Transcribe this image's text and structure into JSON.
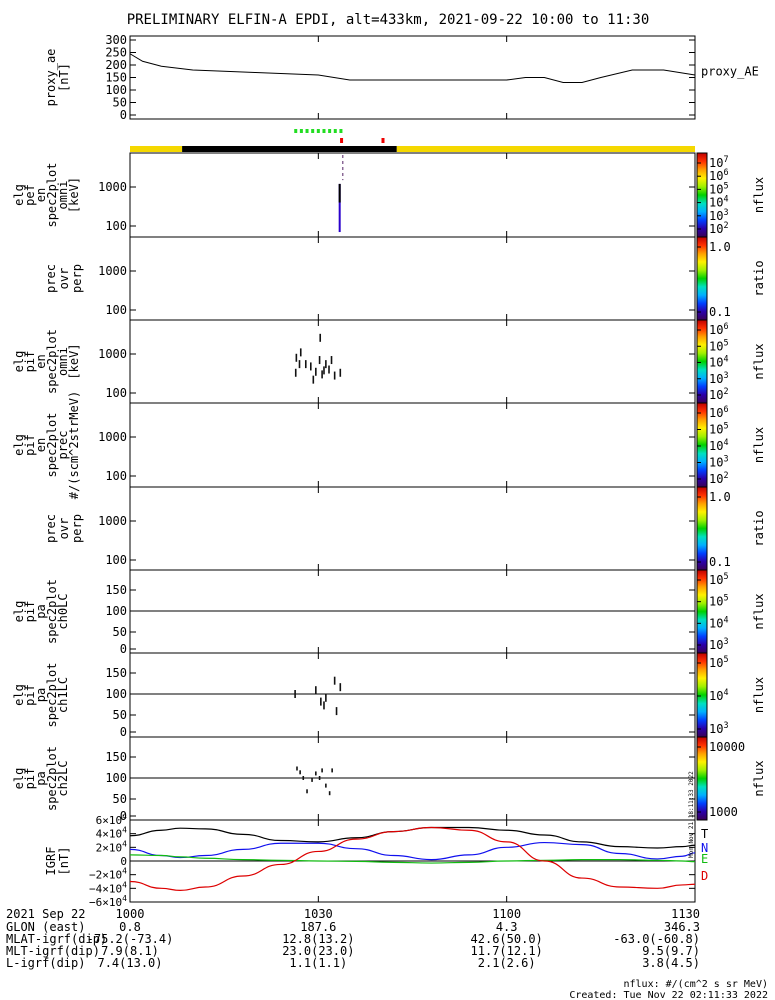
{
  "title": "PRELIMINARY ELFIN-A EPDI, alt=433km, 2021-09-22 10:00 to 11:30",
  "colors": {
    "black_bar": "#000000",
    "yellow_bar": "#f5d800",
    "green_marks": "#22dd22",
    "red_marks": "#ee0000",
    "igrf_T": "#000000",
    "igrf_N": "#1010ee",
    "igrf_E": "#11bb11",
    "igrf_D": "#dd0000"
  },
  "time_axis": {
    "tick_labels": [
      "1000",
      "1030",
      "1100",
      "1130"
    ],
    "tick_minutes": [
      0,
      30,
      60,
      90
    ],
    "range_minutes": [
      0,
      90
    ]
  },
  "orbit_bar": {
    "segments": [
      {
        "start_min": 0,
        "end_min": 8.3,
        "color": "yellow"
      },
      {
        "start_min": 8.3,
        "end_min": 42.5,
        "color": "black"
      },
      {
        "start_min": 42.5,
        "end_min": 90,
        "color": "yellow"
      }
    ],
    "green_marks_min": [
      26.4,
      27.3,
      28.2,
      29.1,
      30.0,
      30.9,
      31.8,
      32.7,
      33.6
    ],
    "red_marks_min": [
      33.7,
      40.3
    ]
  },
  "panels": [
    {
      "id": "proxy_ae",
      "ylabel": [
        "proxy_ae",
        "[nT]"
      ],
      "right_label": "proxy_AE",
      "yticks": [
        "300",
        "250",
        "200",
        "150",
        "100",
        "50",
        "0"
      ],
      "yrange": [
        0,
        300
      ]
    },
    {
      "id": "pef_en_omni",
      "ylabel": [
        "elg",
        "pef",
        "en",
        "spec2plot",
        "omni",
        "[keV]"
      ],
      "yticks": [
        "1000",
        "100"
      ],
      "colorbar": {
        "type": "nflux",
        "labels": [
          "10^7",
          "10^6",
          "10^5",
          "10^4",
          "10^3",
          "10^2"
        ],
        "title": "nflux"
      }
    },
    {
      "id": "prec_ovr_perp_e",
      "ylabel": [
        "prec",
        "ovr",
        "perp"
      ],
      "yticks": [
        "1000",
        "100"
      ],
      "colorbar": {
        "type": "ratio",
        "labels": [
          "1.0",
          "0.1"
        ],
        "title": "ratio"
      }
    },
    {
      "id": "pif_en_omni",
      "ylabel": [
        "elg",
        "pif",
        "en",
        "spec2plot",
        "omni",
        "[keV]"
      ],
      "yticks": [
        "1000",
        "100"
      ],
      "colorbar": {
        "type": "nflux",
        "labels": [
          "10^6",
          "10^5",
          "10^4",
          "10^3",
          "10^2"
        ],
        "title": "nflux"
      }
    },
    {
      "id": "pif_en_prec",
      "ylabel": [
        "elg",
        "pif",
        "en",
        "spec2plot",
        "prec",
        "#/(scm^2strMeV)"
      ],
      "yticks": [
        "1000",
        "100"
      ],
      "colorbar": {
        "type": "nflux",
        "labels": [
          "10^6",
          "10^5",
          "10^4",
          "10^3",
          "10^2"
        ],
        "title": "nflux"
      }
    },
    {
      "id": "prec_ovr_perp_i",
      "ylabel": [
        "prec",
        "ovr",
        "perp"
      ],
      "yticks": [
        "1000",
        "100"
      ],
      "colorbar": {
        "type": "ratio",
        "labels": [
          "1.0",
          "0.1"
        ],
        "title": "ratio"
      }
    },
    {
      "id": "pa_ch0LC",
      "ylabel": [
        "elg",
        "pif",
        "pa",
        "spec2plot",
        "ch0LC"
      ],
      "yticks": [
        "150",
        "100",
        "50",
        "0"
      ],
      "colorbar": {
        "type": "nflux",
        "labels": [
          "10^5",
          "10^5",
          "10^4",
          "10^3"
        ],
        "title": "nflux"
      }
    },
    {
      "id": "pa_ch1LC",
      "ylabel": [
        "elg",
        "pif",
        "pa",
        "spec2plot",
        "ch1LC"
      ],
      "yticks": [
        "150",
        "100",
        "50",
        "0"
      ],
      "colorbar": {
        "type": "nflux",
        "labels": [
          "10^5",
          "10^4",
          "10^3"
        ],
        "title": "nflux"
      }
    },
    {
      "id": "pa_ch2LC",
      "ylabel": [
        "elg",
        "pif",
        "pa",
        "spec2plot",
        "ch2LC"
      ],
      "yticks": [
        "150",
        "100",
        "50",
        "0"
      ],
      "colorbar": {
        "type": "nflux",
        "labels": [
          "10000",
          "1000"
        ],
        "title": "nflux"
      }
    },
    {
      "id": "igrf",
      "ylabel": [
        "IGRF",
        "[nT]"
      ],
      "yticks": [
        "6×10^4",
        "4×10^4",
        "2×10^4",
        "0",
        "−2×10^4",
        "−4×10^4",
        "−6×10^4"
      ],
      "yrange": [
        -60000,
        60000
      ],
      "legend": [
        "T",
        "N",
        "E",
        "D"
      ]
    }
  ],
  "chart_data": {
    "type": "line",
    "title": "PRELIMINARY ELFIN-A EPDI, alt=433km, 2021-09-22 10:00 to 11:30",
    "x_unit": "minutes after 2021-09-22 10:00",
    "proxy_ae": {
      "x": [
        0,
        2,
        5,
        10,
        15,
        20,
        25,
        30,
        35,
        40,
        45,
        50,
        55,
        60,
        63,
        66,
        69,
        72,
        75,
        80,
        85,
        90
      ],
      "y": [
        245,
        215,
        195,
        180,
        175,
        170,
        165,
        160,
        140,
        140,
        140,
        140,
        140,
        140,
        150,
        150,
        130,
        130,
        150,
        180,
        180,
        160
      ]
    },
    "pef_en_omni_spot": {
      "t_min": [
        33.4,
        33.9
      ],
      "energy_keV": [
        70,
        1200
      ]
    },
    "pif_en_omni_spots": [
      {
        "t": 26.5,
        "e": 800
      },
      {
        "t": 27.2,
        "e": 1100
      },
      {
        "t": 27.0,
        "e": 550
      },
      {
        "t": 28.0,
        "e": 550
      },
      {
        "t": 28.8,
        "e": 480
      },
      {
        "t": 29.6,
        "e": 350
      },
      {
        "t": 30.2,
        "e": 700
      },
      {
        "t": 30.3,
        "e": 2600
      },
      {
        "t": 30.9,
        "e": 380
      },
      {
        "t": 31.2,
        "e": 550
      },
      {
        "t": 31.7,
        "e": 400
      },
      {
        "t": 32.1,
        "e": 700
      },
      {
        "t": 32.6,
        "e": 280
      },
      {
        "t": 33.5,
        "e": 330
      },
      {
        "t": 26.4,
        "e": 330
      },
      {
        "t": 29.2,
        "e": 220
      },
      {
        "t": 30.6,
        "e": 300
      }
    ],
    "pa_ch1LC_spots": [
      {
        "t": 26.3,
        "pa": 100
      },
      {
        "t": 29.6,
        "pa": 110
      },
      {
        "t": 30.4,
        "pa": 80
      },
      {
        "t": 30.9,
        "pa": 70
      },
      {
        "t": 31.2,
        "pa": 90
      },
      {
        "t": 32.6,
        "pa": 135
      },
      {
        "t": 32.9,
        "pa": 55
      },
      {
        "t": 33.5,
        "pa": 118
      }
    ],
    "pa_ch2LC_spots": [
      {
        "t": 26.6,
        "pa": 125
      },
      {
        "t": 27.1,
        "pa": 115
      },
      {
        "t": 27.6,
        "pa": 100
      },
      {
        "t": 28.2,
        "pa": 65
      },
      {
        "t": 29.0,
        "pa": 95
      },
      {
        "t": 29.6,
        "pa": 112
      },
      {
        "t": 30.2,
        "pa": 100
      },
      {
        "t": 30.6,
        "pa": 120
      },
      {
        "t": 31.2,
        "pa": 80
      },
      {
        "t": 31.8,
        "pa": 60
      },
      {
        "t": 32.2,
        "pa": 120
      }
    ],
    "igrf": {
      "x": [
        0,
        5,
        8,
        12,
        18,
        24,
        30,
        36,
        42,
        48,
        54,
        60,
        66,
        72,
        78,
        84,
        88,
        90
      ],
      "series": [
        {
          "name": "T",
          "values": [
            37000,
            45000,
            48000,
            47000,
            39000,
            30000,
            28000,
            34000,
            43000,
            49000,
            49000,
            45000,
            38000,
            28000,
            21000,
            19000,
            21000,
            23000
          ]
        },
        {
          "name": "N",
          "values": [
            17000,
            8000,
            5000,
            8000,
            17000,
            26000,
            26000,
            18000,
            8000,
            2000,
            9000,
            20000,
            27000,
            24000,
            11000,
            3000,
            7000,
            12000
          ]
        },
        {
          "name": "E",
          "values": [
            9000,
            8000,
            6000,
            4000,
            2000,
            1000,
            0,
            -500,
            -2000,
            -3000,
            -2000,
            0,
            1000,
            2000,
            2000,
            1000,
            0,
            -1000
          ]
        },
        {
          "name": "D",
          "values": [
            -30000,
            -40000,
            -43000,
            -38000,
            -22000,
            -5000,
            14000,
            32000,
            43000,
            49000,
            45000,
            28000,
            0,
            -25000,
            -38000,
            -40000,
            -35000,
            -34000
          ]
        }
      ],
      "ylim": [
        -60000,
        60000
      ]
    }
  },
  "orbit_table": {
    "rows": [
      {
        "label": "2021 Sep 22",
        "values": [
          "1000",
          "1030",
          "1100",
          "1130"
        ]
      },
      {
        "label": "GLON (east)",
        "values": [
          "0.8",
          "187.6",
          "4.3",
          "346.3"
        ]
      },
      {
        "label": "MLAT-igrf(dip)",
        "values": [
          "-75.2(-73.4)",
          "12.8(13.2)",
          "42.6(50.0)",
          "-63.0(-60.8)"
        ]
      },
      {
        "label": "MLT-igrf(dip)",
        "values": [
          "7.9(8.1)",
          "23.0(23.0)",
          "11.7(12.1)",
          "9.5(9.7)"
        ]
      },
      {
        "label": "L-igrf(dip)",
        "values": [
          "7.4(13.0)",
          "1.1(1.1)",
          "2.1(2.6)",
          "3.8(4.5)"
        ]
      }
    ]
  },
  "footer": {
    "units": "nflux: #/(cm^2 s sr MeV)",
    "created": "Created: Tue Nov 22 02:11:33 2022",
    "side_stamp": "Mon Nov 21 18:11:33 2022"
  }
}
